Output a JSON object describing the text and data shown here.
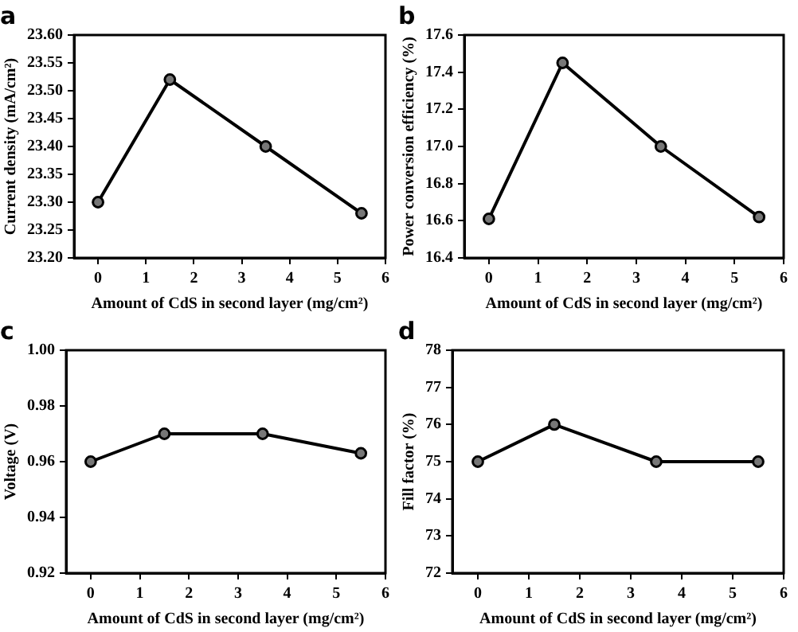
{
  "chart_data": [
    {
      "type": "line",
      "title": "a",
      "xlabel": "Amount of CdS in second layer (mg/cm²)",
      "ylabel": "Current density (mA/cm²)",
      "x": [
        0,
        1.5,
        3.5,
        5.5
      ],
      "series": [
        {
          "color": "#000000",
          "values": [
            23.3,
            23.52,
            23.4,
            23.28
          ]
        }
      ],
      "xlim": [
        -0.5,
        6
      ],
      "xticks": [
        0,
        1,
        2,
        3,
        4,
        5,
        6
      ],
      "ylim": [
        23.2,
        23.6
      ],
      "yticks": [
        {
          "value": 23.2,
          "label": "23.20"
        },
        {
          "value": 23.25,
          "label": "23.25"
        },
        {
          "value": 23.3,
          "label": "23.30"
        },
        {
          "value": 23.35,
          "label": "23.35"
        },
        {
          "value": 23.4,
          "label": "23.40"
        },
        {
          "value": 23.45,
          "label": "23.45"
        },
        {
          "value": 23.5,
          "label": "23.50"
        },
        {
          "value": 23.55,
          "label": "23.55"
        },
        {
          "value": 23.6,
          "label": "23.60"
        }
      ],
      "grid": false,
      "legend": false,
      "marker": "circle",
      "line_style": "solid"
    },
    {
      "type": "line",
      "title": "b",
      "xlabel": "Amount of CdS in second layer (mg/cm²)",
      "ylabel": "Power conversion efficiency (%)",
      "x": [
        0,
        1.5,
        3.5,
        5.5
      ],
      "series": [
        {
          "color": "#000000",
          "values": [
            16.61,
            17.45,
            17.0,
            16.62
          ]
        }
      ],
      "xlim": [
        -0.5,
        6
      ],
      "xticks": [
        0,
        1,
        2,
        3,
        4,
        5,
        6
      ],
      "ylim": [
        16.4,
        17.6
      ],
      "yticks": [
        16.4,
        16.6,
        16.8,
        {
          "value": 17,
          "label": "17.0"
        },
        17.2,
        17.4,
        17.6
      ],
      "grid": false,
      "legend": false,
      "marker": "circle",
      "line_style": "solid"
    },
    {
      "type": "line",
      "title": "c",
      "xlabel": "Amount of CdS in second layer (mg/cm²)",
      "ylabel": "Voltage (V)",
      "x": [
        0,
        1.5,
        3.5,
        5.5
      ],
      "series": [
        {
          "color": "#000000",
          "values": [
            0.96,
            0.97,
            0.97,
            0.963
          ]
        }
      ],
      "xlim": [
        -0.5,
        6
      ],
      "xticks": [
        0,
        1,
        2,
        3,
        4,
        5,
        6
      ],
      "ylim": [
        0.92,
        1.0
      ],
      "yticks": [
        0.92,
        0.94,
        0.96,
        0.98,
        {
          "value": 1,
          "label": "1.00"
        }
      ],
      "grid": false,
      "legend": false,
      "marker": "circle",
      "line_style": "solid"
    },
    {
      "type": "line",
      "title": "d",
      "xlabel": "Amount of CdS in second layer (mg/cm²)",
      "ylabel": "Fill factor (%)",
      "x": [
        0,
        1.5,
        3.5,
        5.5
      ],
      "series": [
        {
          "color": "#000000",
          "values": [
            75,
            76,
            75,
            75
          ]
        }
      ],
      "xlim": [
        -0.5,
        6
      ],
      "xticks": [
        0,
        1,
        2,
        3,
        4,
        5,
        6
      ],
      "ylim": [
        72,
        78
      ],
      "yticks": [
        72,
        73,
        74,
        75,
        76,
        77,
        78
      ],
      "grid": false,
      "legend": false,
      "marker": "circle",
      "line_style": "solid"
    }
  ]
}
